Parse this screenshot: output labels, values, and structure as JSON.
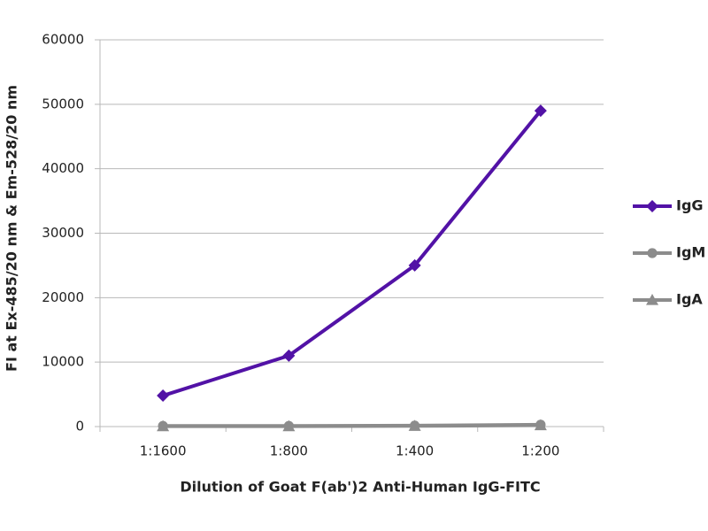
{
  "chart_data": {
    "type": "line",
    "x_label": "Dilution of Goat F(ab')2 Anti-Human IgG-FITC",
    "y_label": "FI at Ex-485/20 nm & Em-528/20 nm",
    "categories": [
      "1:1600",
      "1:800",
      "1:400",
      "1:200"
    ],
    "series": [
      {
        "name": "IgG",
        "color": "#5212a6",
        "marker": "diamond",
        "values": [
          4800,
          11000,
          25000,
          49000
        ]
      },
      {
        "name": "IgM",
        "color": "#8c8c8c",
        "marker": "circle",
        "values": [
          100,
          100,
          150,
          300
        ]
      },
      {
        "name": "IgA",
        "color": "#8c8c8c",
        "marker": "triangle",
        "values": [
          50,
          50,
          100,
          200
        ]
      }
    ],
    "ylim": [
      0,
      60000
    ],
    "yticks": [
      0,
      10000,
      20000,
      30000,
      40000,
      50000,
      60000
    ],
    "grid": true,
    "legend": "right"
  }
}
